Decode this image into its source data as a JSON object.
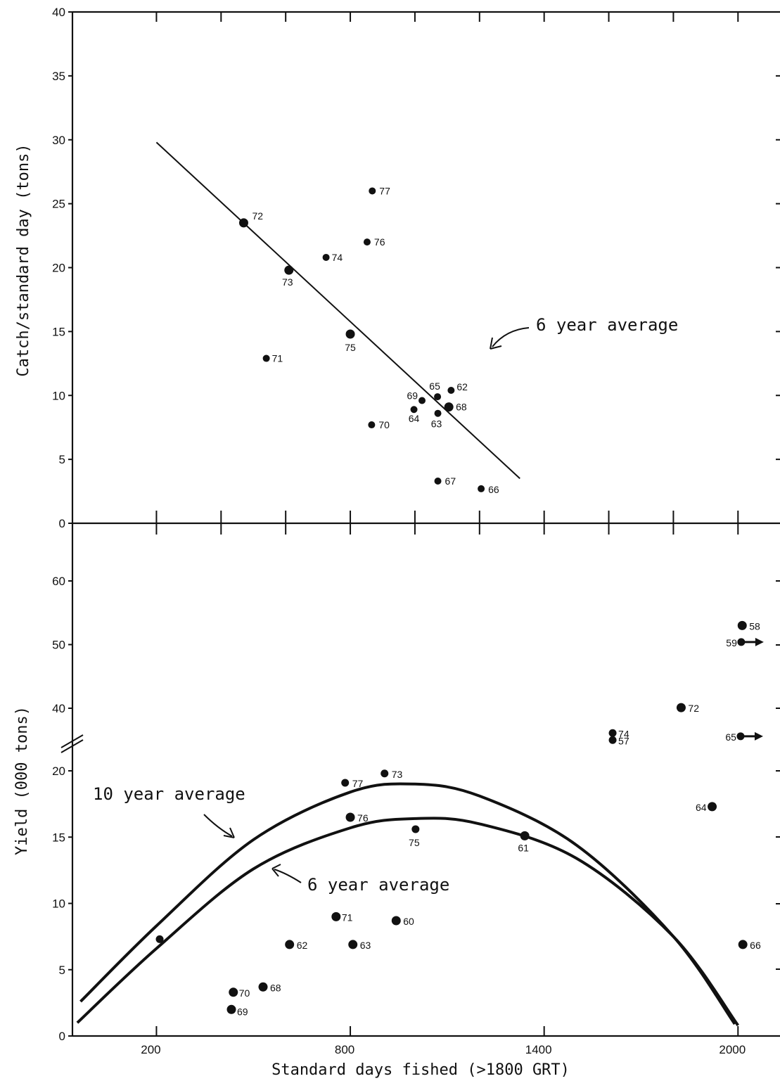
{
  "chart_data": [
    {
      "type": "scatter",
      "ylabel": "Catch/standard day (tons)",
      "xlim": [
        -60,
        2130
      ],
      "ylim": [
        0,
        40
      ],
      "yticks": [
        0,
        5,
        10,
        15,
        20,
        25,
        30,
        35,
        40
      ],
      "xticks": [
        200,
        400,
        600,
        800,
        1000,
        1200,
        1400,
        1600,
        1800,
        2000
      ],
      "points": [
        {
          "label": "72",
          "x": 470,
          "y": 23.5
        },
        {
          "label": "73",
          "x": 610,
          "y": 19.8
        },
        {
          "label": "74",
          "x": 725,
          "y": 20.8
        },
        {
          "label": "77",
          "x": 868,
          "y": 26
        },
        {
          "label": "76",
          "x": 852,
          "y": 22
        },
        {
          "label": "75",
          "x": 800,
          "y": 14.8
        },
        {
          "label": "71",
          "x": 540,
          "y": 12.9
        },
        {
          "label": "70",
          "x": 866,
          "y": 7.7
        },
        {
          "label": "69",
          "x": 1022,
          "y": 9.6
        },
        {
          "label": "64",
          "x": 997,
          "y": 8.9
        },
        {
          "label": "65",
          "x": 1070,
          "y": 9.9
        },
        {
          "label": "63",
          "x": 1071,
          "y": 8.6
        },
        {
          "label": "62",
          "x": 1112,
          "y": 10.4
        },
        {
          "label": "68",
          "x": 1105,
          "y": 9.1
        },
        {
          "label": "67",
          "x": 1071,
          "y": 3.3
        },
        {
          "label": "66",
          "x": 1205,
          "y": 2.7
        }
      ],
      "fit_line": {
        "x": [
          200,
          1325
        ],
        "y": [
          29.8,
          3.5
        ]
      },
      "annotations": [
        {
          "text": "6 year average"
        }
      ]
    },
    {
      "type": "scatter",
      "xlabel": "Standard days fished (>1800 GRT)",
      "ylabel": "Yield (000 tons)",
      "xlim": [
        -60,
        2130
      ],
      "yticks_lower": [
        0,
        5,
        10,
        15,
        20
      ],
      "yticks_upper": [
        40,
        50,
        60
      ],
      "xticks_labeled": [
        200,
        800,
        1400,
        2000
      ],
      "points": [
        {
          "label": "58",
          "x": 2013,
          "y": 53
        },
        {
          "label": "59",
          "x": 2010,
          "y": 50.4,
          "arrow": true
        },
        {
          "label": "72",
          "x": 1824,
          "y": 40.1
        },
        {
          "label": "74",
          "x": 1612,
          "y": 36.1
        },
        {
          "label": "57",
          "x": 1612,
          "y": 35
        },
        {
          "label": "65",
          "x": 2008,
          "y": 35.6,
          "arrow": true
        },
        {
          "label": "73",
          "x": 906,
          "y": 19.8
        },
        {
          "label": "77",
          "x": 784,
          "y": 19.1
        },
        {
          "label": "76",
          "x": 800,
          "y": 16.5
        },
        {
          "label": "75",
          "x": 1002,
          "y": 15.6
        },
        {
          "label": "61",
          "x": 1340,
          "y": 15.1
        },
        {
          "label": "64",
          "x": 1920,
          "y": 17.3
        },
        {
          "label": "71",
          "x": 756,
          "y": 9
        },
        {
          "label": "60",
          "x": 942,
          "y": 8.7
        },
        {
          "label": "62",
          "x": 612,
          "y": 6.9
        },
        {
          "label": "63",
          "x": 808,
          "y": 6.9
        },
        {
          "label": "66",
          "x": 2015,
          "y": 6.9
        },
        {
          "label": "68",
          "x": 530,
          "y": 3.7
        },
        {
          "label": "70",
          "x": 438,
          "y": 3.3
        },
        {
          "label": "69",
          "x": 432,
          "y": 2
        },
        {
          "label": "",
          "x": 210,
          "y": 7.3
        }
      ],
      "curves": [
        {
          "name": "10 year average",
          "x": [
            -35,
            200,
            500,
            800,
            1000,
            1200,
            1500,
            1800,
            1990
          ],
          "y": [
            2.6,
            8.3,
            14.8,
            18.4,
            19,
            18.1,
            14.4,
            7.5,
            0.9
          ]
        },
        {
          "name": "6 year average",
          "x": [
            -45,
            200,
            500,
            800,
            1000,
            1200,
            1500,
            1800,
            2000
          ],
          "y": [
            1,
            6.6,
            12.6,
            15.7,
            16.4,
            16,
            13.4,
            7.5,
            0.8
          ]
        }
      ],
      "annotations": [
        {
          "text": "10 year average"
        },
        {
          "text": "6 year average"
        }
      ]
    }
  ]
}
